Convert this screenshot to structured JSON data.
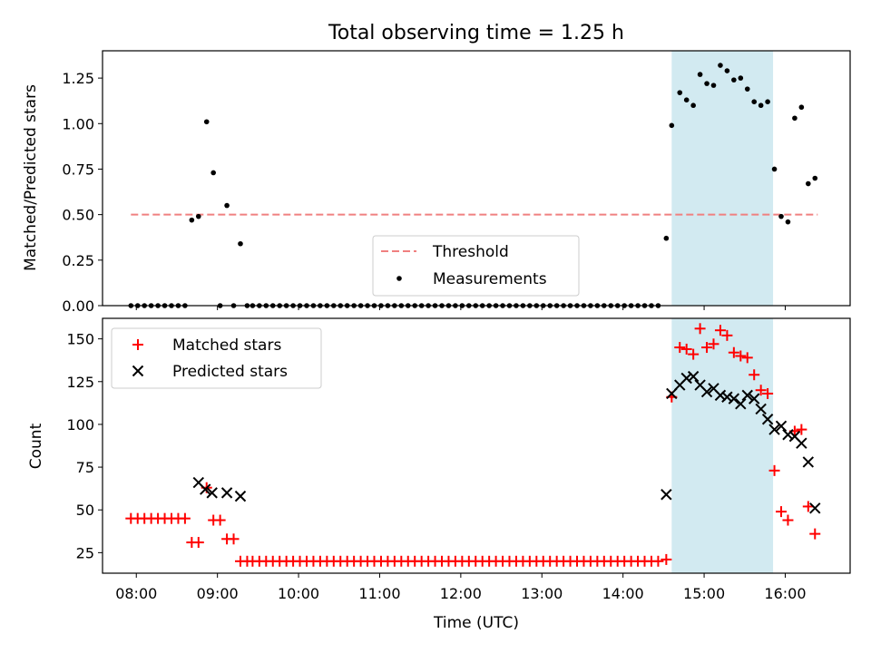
{
  "figure": {
    "title": "Total observing time = 1.25 h",
    "xlabel": "Time (UTC)"
  },
  "colors": {
    "threshold": "#f08080",
    "measurement": "#000000",
    "matched": "#ff0000",
    "predicted": "#000000",
    "span": "#add8e6"
  },
  "chart_data": [
    {
      "type": "scatter",
      "ylabel": "Matched/Predicted stars",
      "xlim": [
        "07:35",
        "16:48"
      ],
      "ylim": [
        0,
        1.4
      ],
      "yticks": [
        0,
        0.25,
        0.5,
        0.75,
        1.0,
        1.25
      ],
      "ytick_labels": [
        "0.00",
        "0.25",
        "0.50",
        "0.75",
        "1.00",
        "1.25"
      ],
      "highlight_span": [
        "14:36",
        "15:51"
      ],
      "legend": {
        "placement": "lower-center",
        "entries": [
          "Threshold",
          "Measurements"
        ]
      },
      "threshold": {
        "name": "Threshold",
        "style": "dashed",
        "x": [
          "07:56",
          "16:24"
        ],
        "y": 0.5
      },
      "measurements": {
        "name": "Measurements",
        "points": [
          [
            "07:56",
            0
          ],
          [
            "08:01",
            0
          ],
          [
            "08:06",
            0
          ],
          [
            "08:11",
            0
          ],
          [
            "08:16",
            0
          ],
          [
            "08:21",
            0
          ],
          [
            "08:26",
            0
          ],
          [
            "08:31",
            0
          ],
          [
            "08:36",
            0
          ],
          [
            "08:41",
            0.47
          ],
          [
            "08:46",
            0.49
          ],
          [
            "08:52",
            1.01
          ],
          [
            "08:57",
            0.73
          ],
          [
            "09:02",
            0
          ],
          [
            "09:07",
            0.55
          ],
          [
            "09:12",
            0
          ],
          [
            "09:17",
            0.34
          ],
          [
            "09:22",
            0
          ],
          [
            "09:26",
            0
          ],
          [
            "09:31",
            0
          ],
          [
            "09:36",
            0
          ],
          [
            "09:41",
            0
          ],
          [
            "09:46",
            0
          ],
          [
            "09:51",
            0
          ],
          [
            "09:56",
            0
          ],
          [
            "10:01",
            0
          ],
          [
            "10:06",
            0
          ],
          [
            "10:11",
            0
          ],
          [
            "10:16",
            0
          ],
          [
            "10:21",
            0
          ],
          [
            "10:26",
            0
          ],
          [
            "10:31",
            0
          ],
          [
            "10:36",
            0
          ],
          [
            "10:41",
            0
          ],
          [
            "10:46",
            0
          ],
          [
            "10:51",
            0
          ],
          [
            "10:56",
            0
          ],
          [
            "11:01",
            0
          ],
          [
            "11:06",
            0
          ],
          [
            "11:11",
            0
          ],
          [
            "11:16",
            0
          ],
          [
            "11:21",
            0
          ],
          [
            "11:26",
            0
          ],
          [
            "11:31",
            0
          ],
          [
            "11:36",
            0
          ],
          [
            "11:41",
            0
          ],
          [
            "11:46",
            0
          ],
          [
            "11:51",
            0
          ],
          [
            "11:56",
            0
          ],
          [
            "12:01",
            0
          ],
          [
            "12:06",
            0
          ],
          [
            "12:11",
            0
          ],
          [
            "12:16",
            0
          ],
          [
            "12:21",
            0
          ],
          [
            "12:26",
            0
          ],
          [
            "12:31",
            0
          ],
          [
            "12:36",
            0
          ],
          [
            "12:41",
            0
          ],
          [
            "12:46",
            0
          ],
          [
            "12:51",
            0
          ],
          [
            "12:56",
            0
          ],
          [
            "13:01",
            0
          ],
          [
            "13:06",
            0
          ],
          [
            "13:11",
            0
          ],
          [
            "13:16",
            0
          ],
          [
            "13:21",
            0
          ],
          [
            "13:26",
            0
          ],
          [
            "13:31",
            0
          ],
          [
            "13:36",
            0
          ],
          [
            "13:41",
            0
          ],
          [
            "13:46",
            0
          ],
          [
            "13:51",
            0
          ],
          [
            "13:56",
            0
          ],
          [
            "14:01",
            0
          ],
          [
            "14:06",
            0
          ],
          [
            "14:11",
            0
          ],
          [
            "14:16",
            0
          ],
          [
            "14:21",
            0
          ],
          [
            "14:26",
            0
          ],
          [
            "14:32",
            0.37
          ],
          [
            "14:36",
            0.99
          ],
          [
            "14:42",
            1.17
          ],
          [
            "14:47",
            1.13
          ],
          [
            "14:52",
            1.1
          ],
          [
            "14:57",
            1.27
          ],
          [
            "15:02",
            1.22
          ],
          [
            "15:07",
            1.21
          ],
          [
            "15:12",
            1.32
          ],
          [
            "15:17",
            1.29
          ],
          [
            "15:22",
            1.24
          ],
          [
            "15:27",
            1.25
          ],
          [
            "15:32",
            1.19
          ],
          [
            "15:37",
            1.12
          ],
          [
            "15:42",
            1.1
          ],
          [
            "15:47",
            1.12
          ],
          [
            "15:52",
            0.75
          ],
          [
            "15:57",
            0.49
          ],
          [
            "16:02",
            0.46
          ],
          [
            "16:07",
            1.03
          ],
          [
            "16:12",
            1.09
          ],
          [
            "16:17",
            0.67
          ],
          [
            "16:22",
            0.7
          ]
        ]
      }
    },
    {
      "type": "scatter",
      "ylabel": "Count",
      "xlim": [
        "07:35",
        "16:48"
      ],
      "ylim": [
        13,
        162
      ],
      "yticks": [
        25,
        50,
        75,
        100,
        125,
        150
      ],
      "ytick_labels": [
        "25",
        "50",
        "75",
        "100",
        "125",
        "150"
      ],
      "xticks": [
        "08:00",
        "09:00",
        "10:00",
        "11:00",
        "12:00",
        "13:00",
        "14:00",
        "15:00",
        "16:00"
      ],
      "highlight_span": [
        "14:36",
        "15:51"
      ],
      "legend": {
        "placement": "upper-left",
        "entries": [
          "Matched stars",
          "Predicted stars"
        ]
      },
      "series": [
        {
          "name": "Matched stars",
          "marker": "+",
          "points": [
            [
              "07:56",
              45
            ],
            [
              "08:01",
              45
            ],
            [
              "08:06",
              45
            ],
            [
              "08:11",
              45
            ],
            [
              "08:16",
              45
            ],
            [
              "08:21",
              45
            ],
            [
              "08:26",
              45
            ],
            [
              "08:31",
              45
            ],
            [
              "08:36",
              45
            ],
            [
              "08:41",
              31
            ],
            [
              "08:46",
              31
            ],
            [
              "08:52",
              63
            ],
            [
              "08:57",
              44
            ],
            [
              "09:02",
              44
            ],
            [
              "09:07",
              33
            ],
            [
              "09:12",
              33
            ],
            [
              "09:17",
              20
            ],
            [
              "09:22",
              20
            ],
            [
              "09:26",
              20
            ],
            [
              "09:31",
              20
            ],
            [
              "09:36",
              20
            ],
            [
              "09:41",
              20
            ],
            [
              "09:46",
              20
            ],
            [
              "09:51",
              20
            ],
            [
              "09:56",
              20
            ],
            [
              "10:01",
              20
            ],
            [
              "10:06",
              20
            ],
            [
              "10:11",
              20
            ],
            [
              "10:16",
              20
            ],
            [
              "10:21",
              20
            ],
            [
              "10:26",
              20
            ],
            [
              "10:31",
              20
            ],
            [
              "10:36",
              20
            ],
            [
              "10:41",
              20
            ],
            [
              "10:46",
              20
            ],
            [
              "10:51",
              20
            ],
            [
              "10:56",
              20
            ],
            [
              "11:01",
              20
            ],
            [
              "11:06",
              20
            ],
            [
              "11:11",
              20
            ],
            [
              "11:16",
              20
            ],
            [
              "11:21",
              20
            ],
            [
              "11:26",
              20
            ],
            [
              "11:31",
              20
            ],
            [
              "11:36",
              20
            ],
            [
              "11:41",
              20
            ],
            [
              "11:46",
              20
            ],
            [
              "11:51",
              20
            ],
            [
              "11:56",
              20
            ],
            [
              "12:01",
              20
            ],
            [
              "12:06",
              20
            ],
            [
              "12:11",
              20
            ],
            [
              "12:16",
              20
            ],
            [
              "12:21",
              20
            ],
            [
              "12:26",
              20
            ],
            [
              "12:31",
              20
            ],
            [
              "12:36",
              20
            ],
            [
              "12:41",
              20
            ],
            [
              "12:46",
              20
            ],
            [
              "12:51",
              20
            ],
            [
              "12:56",
              20
            ],
            [
              "13:01",
              20
            ],
            [
              "13:06",
              20
            ],
            [
              "13:11",
              20
            ],
            [
              "13:16",
              20
            ],
            [
              "13:21",
              20
            ],
            [
              "13:26",
              20
            ],
            [
              "13:31",
              20
            ],
            [
              "13:36",
              20
            ],
            [
              "13:41",
              20
            ],
            [
              "13:46",
              20
            ],
            [
              "13:51",
              20
            ],
            [
              "13:56",
              20
            ],
            [
              "14:01",
              20
            ],
            [
              "14:06",
              20
            ],
            [
              "14:11",
              20
            ],
            [
              "14:16",
              20
            ],
            [
              "14:21",
              20
            ],
            [
              "14:26",
              20
            ],
            [
              "14:32",
              21
            ],
            [
              "14:36",
              116
            ],
            [
              "14:42",
              145
            ],
            [
              "14:47",
              144
            ],
            [
              "14:52",
              141
            ],
            [
              "14:57",
              156
            ],
            [
              "15:02",
              145
            ],
            [
              "15:07",
              147
            ],
            [
              "15:12",
              155
            ],
            [
              "15:17",
              152
            ],
            [
              "15:22",
              142
            ],
            [
              "15:27",
              140
            ],
            [
              "15:32",
              139
            ],
            [
              "15:37",
              129
            ],
            [
              "15:42",
              120
            ],
            [
              "15:47",
              118
            ],
            [
              "15:52",
              73
            ],
            [
              "15:57",
              49
            ],
            [
              "16:02",
              44
            ],
            [
              "16:07",
              96
            ],
            [
              "16:12",
              97
            ],
            [
              "16:17",
              52
            ],
            [
              "16:22",
              36
            ]
          ]
        },
        {
          "name": "Predicted stars",
          "marker": "x",
          "points": [
            [
              "08:46",
              66
            ],
            [
              "08:51",
              62
            ],
            [
              "08:56",
              60
            ],
            [
              "09:07",
              60
            ],
            [
              "09:17",
              58
            ],
            [
              "14:32",
              59
            ],
            [
              "14:36",
              118
            ],
            [
              "14:42",
              123
            ],
            [
              "14:47",
              127
            ],
            [
              "14:52",
              128
            ],
            [
              "14:57",
              123
            ],
            [
              "15:02",
              119
            ],
            [
              "15:07",
              121
            ],
            [
              "15:12",
              117
            ],
            [
              "15:17",
              116
            ],
            [
              "15:22",
              115
            ],
            [
              "15:27",
              112
            ],
            [
              "15:32",
              117
            ],
            [
              "15:37",
              115
            ],
            [
              "15:42",
              109
            ],
            [
              "15:47",
              103
            ],
            [
              "15:52",
              97
            ],
            [
              "15:57",
              99
            ],
            [
              "16:02",
              94
            ],
            [
              "16:07",
              93
            ],
            [
              "16:12",
              89
            ],
            [
              "16:17",
              78
            ],
            [
              "16:22",
              51
            ]
          ]
        }
      ]
    }
  ]
}
